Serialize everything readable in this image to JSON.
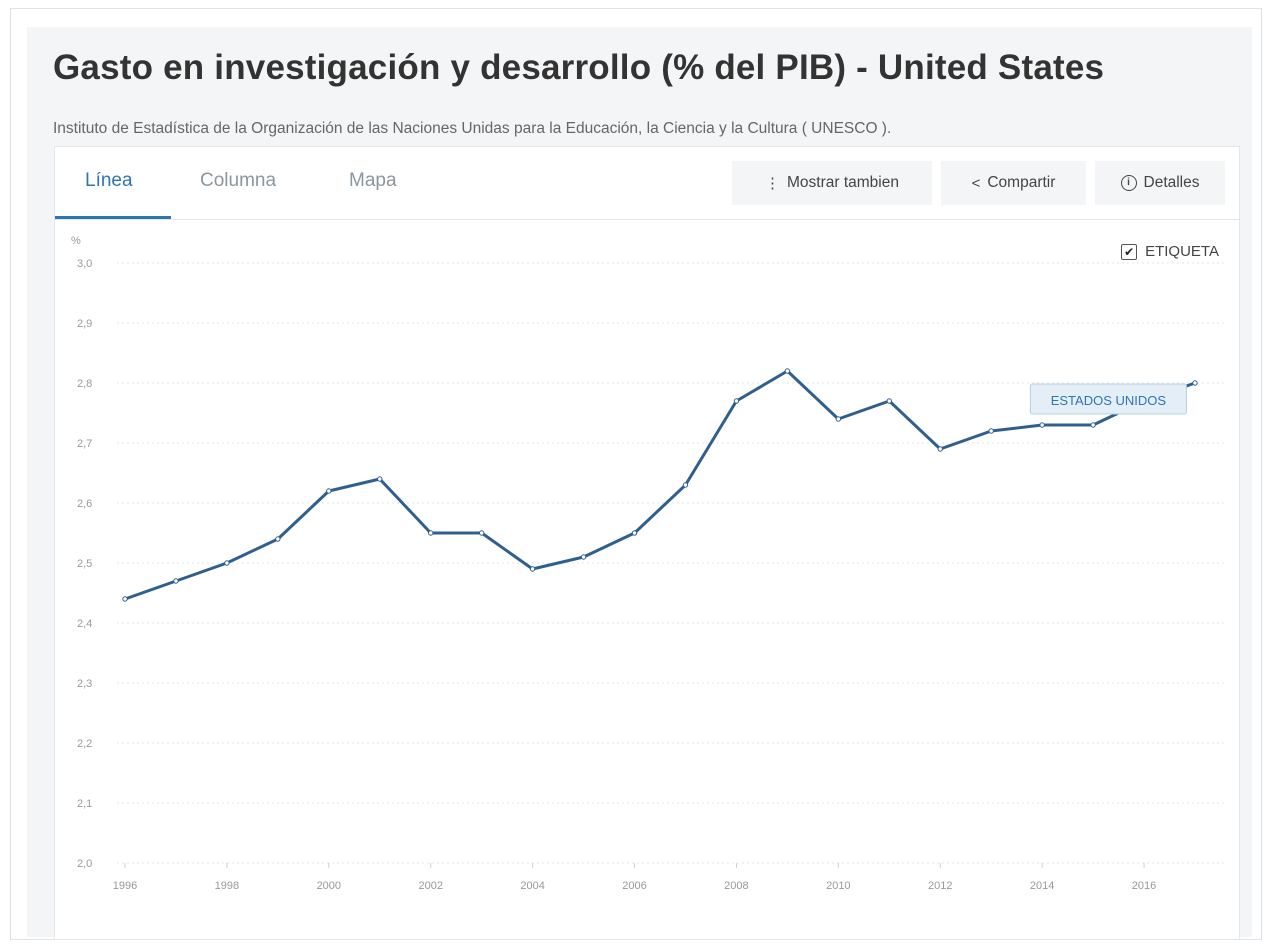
{
  "header": {
    "title": "Gasto en investigación y desarrollo (% del PIB) - United States",
    "source": "Instituto de Estadística de la Organización de las Naciones Unidas para la Educación, la Ciencia y la Cultura ( UNESCO )."
  },
  "tabs": [
    {
      "label": "Línea",
      "active": true
    },
    {
      "label": "Columna",
      "active": false
    },
    {
      "label": "Mapa",
      "active": false
    }
  ],
  "toolbar": {
    "show_also_label": "Mostrar tambien",
    "share_label": "Compartir",
    "details_label": "Detalles"
  },
  "legend_toggle": {
    "label": "ETIQUETA",
    "checked": true
  },
  "colors": {
    "accent": "#2f74b5",
    "line": "#2f5f8f",
    "panel": "#f3f5f7"
  },
  "chart_data": {
    "type": "line",
    "ylabel": "%",
    "ylim": [
      2.0,
      3.0
    ],
    "yticks": [
      2.0,
      2.1,
      2.2,
      2.3,
      2.4,
      2.5,
      2.6,
      2.7,
      2.8,
      2.9,
      3.0
    ],
    "ytick_labels": [
      "2,0",
      "2,1",
      "2,2",
      "2,3",
      "2,4",
      "2,5",
      "2,6",
      "2,7",
      "2,8",
      "2,9",
      "3,0"
    ],
    "xlim": [
      1996,
      2017
    ],
    "xticks": [
      1996,
      1998,
      2000,
      2002,
      2004,
      2006,
      2008,
      2010,
      2012,
      2014,
      2016
    ],
    "grid": true,
    "series": [
      {
        "name": "ESTADOS UNIDOS",
        "x": [
          1996,
          1997,
          1998,
          1999,
          2000,
          2001,
          2002,
          2003,
          2004,
          2005,
          2006,
          2007,
          2008,
          2009,
          2010,
          2011,
          2012,
          2013,
          2014,
          2015,
          2016,
          2017
        ],
        "values": [
          2.44,
          2.47,
          2.5,
          2.54,
          2.62,
          2.64,
          2.55,
          2.55,
          2.49,
          2.51,
          2.55,
          2.63,
          2.77,
          2.82,
          2.74,
          2.77,
          2.69,
          2.72,
          2.73,
          2.73,
          2.77,
          2.8
        ]
      }
    ]
  }
}
